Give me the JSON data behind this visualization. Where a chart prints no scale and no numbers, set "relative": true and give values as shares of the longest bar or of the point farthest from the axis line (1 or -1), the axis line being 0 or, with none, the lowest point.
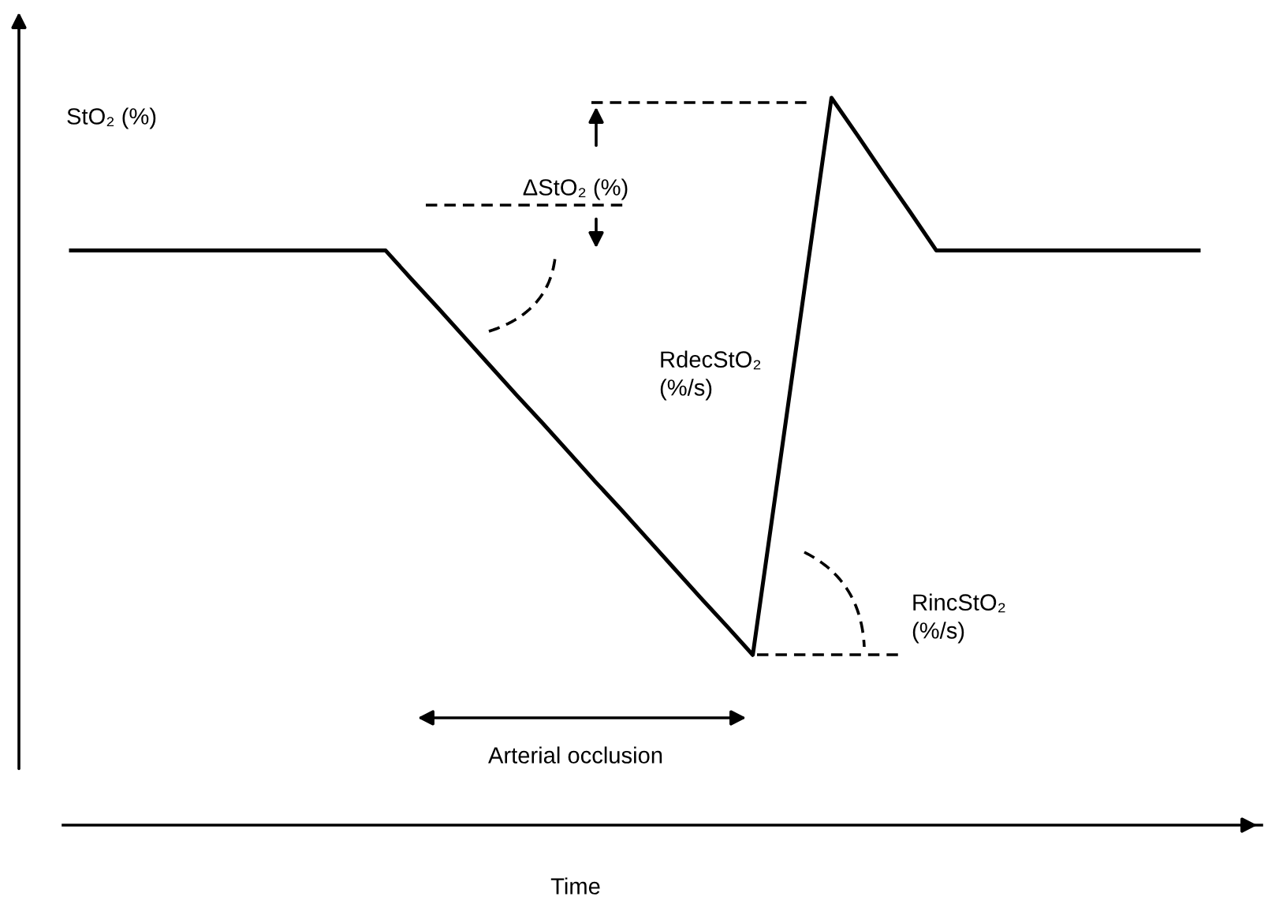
{
  "chart_data": {
    "type": "line",
    "relative": true,
    "xlabel": "Time",
    "ylabel": "StO₂ (%)",
    "categories": [
      null,
      null,
      null,
      null,
      null,
      null,
      null,
      null,
      null,
      null,
      null,
      null,
      null,
      null,
      null,
      null,
      null,
      null,
      null,
      null,
      null,
      null,
      null,
      null,
      null,
      null,
      null,
      null,
      null,
      null,
      null,
      null,
      null,
      null,
      null,
      null,
      null,
      null,
      null,
      null,
      null,
      null,
      null,
      null
    ],
    "tick_labels": false,
    "series": [
      {
        "color": "#000000",
        "values": [
          0.79,
          0.79,
          0.79,
          0.79,
          0.79,
          0.79,
          0.79,
          0.79,
          0.79,
          0.79,
          0.79,
          0.79,
          0.79,
          0.75,
          0.711,
          0.671,
          0.631,
          0.591,
          0.552,
          0.512,
          0.472,
          0.433,
          0.393,
          0.353,
          0.313,
          0.274,
          0.234,
          0.489,
          0.745,
          1,
          0.948,
          0.895,
          0.843,
          0.79,
          0.79,
          0.79,
          0.79,
          0.79,
          0.79,
          0.79,
          0.79,
          0.79,
          0.79,
          0.79
        ]
      }
    ],
    "marker": "none",
    "line_style": "solid",
    "annotations": [
      "ΔStO₂ (%)",
      "RdecStO₂\n(%/s)",
      "RincStO₂\n(%/s)",
      "Arterial occlusion"
    ]
  }
}
